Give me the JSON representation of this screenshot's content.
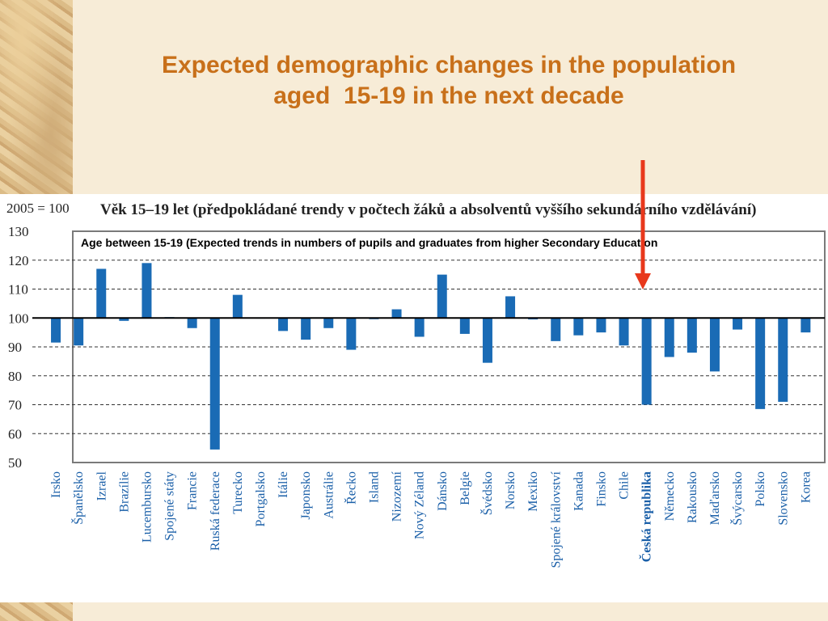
{
  "slide": {
    "title_line1": "Expected demographic changes in the population",
    "title_line2": "aged  15-19 in the next decade",
    "annotation": "Age between 15-19 (Expected trends in numbers of pupils and graduates from higher Secondary Education"
  },
  "colors": {
    "title": "#c8701a",
    "bar": "#1a6bb5",
    "arrow": "#e8381c",
    "labels": "#1a5fa8"
  },
  "chart_data": {
    "type": "bar",
    "title": "Věk 15–19 let (předpokládané trendy v počtech žáků a absolventů vyššího sekundárního vzdělávání)",
    "base_label": "2005 = 100",
    "baseline": 100,
    "ylim": [
      50,
      130
    ],
    "yticks": [
      50,
      60,
      70,
      80,
      90,
      100,
      110,
      120,
      130
    ],
    "grid": true,
    "highlight": "Česká republika",
    "categories": [
      "Irsko",
      "Španělsko",
      "Izrael",
      "Brazílie",
      "Lucembursko",
      "Spojené státy",
      "Francie",
      "Ruská federace",
      "Turecko",
      "Portgalsko",
      "Itálie",
      "Japonsko",
      "Austrálie",
      "Řecko",
      "Island",
      "Nizozemí",
      "Nový Zéland",
      "Dánsko",
      "Belgie",
      "Švédsko",
      "Norsko",
      "Mexiko",
      "Spojené království",
      "Kanada",
      "Finsko",
      "Chile",
      "Česká republika",
      "Německo",
      "Rakousko",
      "Maďarsko",
      "Švýcarsko",
      "Polsko",
      "Slovensko",
      "Korea"
    ],
    "values": [
      91.5,
      90.5,
      117,
      99,
      119,
      100.3,
      96.5,
      54.5,
      108,
      100.2,
      95.5,
      92.5,
      96.5,
      89,
      100,
      103,
      93.5,
      115,
      94.5,
      84.5,
      107.5,
      99.5,
      92,
      94,
      95,
      90.5,
      70,
      86.5,
      88,
      81.5,
      96,
      68.5,
      71,
      95
    ]
  }
}
